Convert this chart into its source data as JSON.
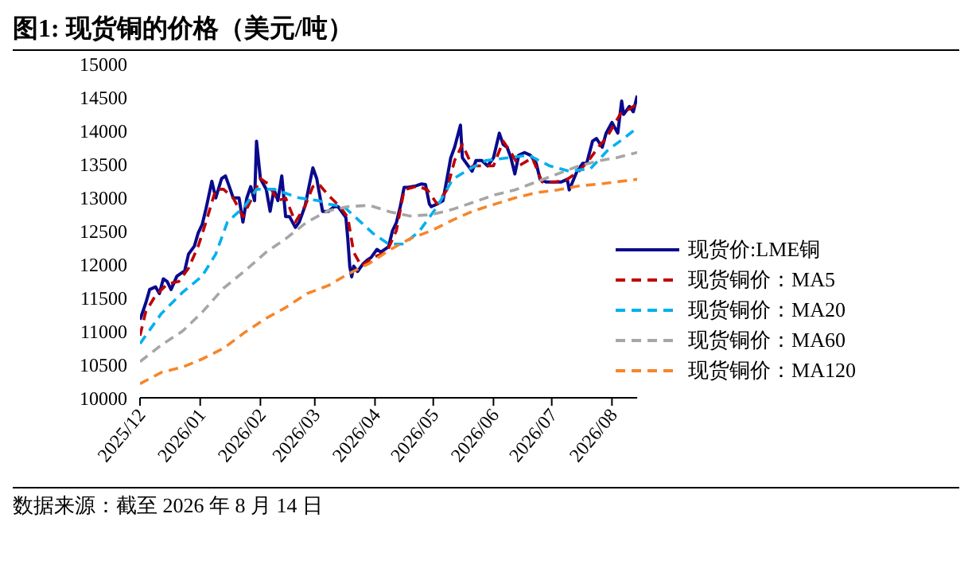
{
  "chart_data": {
    "type": "line",
    "title": "图1:  现货铜的价格（美元/吨）",
    "xlim": [
      "2025-12-01",
      "2026-08-14"
    ],
    "xticks": [
      {
        "value": "2025-12-01",
        "label": "2025/12"
      },
      {
        "value": "2026-01-01",
        "label": "2026/01"
      },
      {
        "value": "2026-02-01",
        "label": "2026/02"
      },
      {
        "value": "2026-03-01",
        "label": "2026/03"
      },
      {
        "value": "2026-04-01",
        "label": "2026/04"
      },
      {
        "value": "2026-05-01",
        "label": "2026/05"
      },
      {
        "value": "2026-06-01",
        "label": "2026/06"
      },
      {
        "value": "2026-07-01",
        "label": "2026/07"
      },
      {
        "value": "2026-08-01",
        "label": "2026/08"
      }
    ],
    "ylim": [
      10000,
      15000
    ],
    "yticks": [
      10000,
      10500,
      11000,
      11500,
      12000,
      12500,
      13000,
      13500,
      14000,
      14500,
      15000
    ],
    "grid": false,
    "legend": "bottom right",
    "marker": "none",
    "annotations": [
      "数据来源：截至 2026 年 8 月 14 日"
    ],
    "series": [
      {
        "name": "现货价:LME铜",
        "color": "#0a0a8c",
        "line_style": "solid",
        "x": [
          "2025-12-01",
          "2025-12-02",
          "2025-12-04",
          "2025-12-06",
          "2025-12-09",
          "2025-12-11",
          "2025-12-13",
          "2025-12-15",
          "2025-12-17",
          "2025-12-20",
          "2025-12-24",
          "2025-12-26",
          "2025-12-29",
          "2025-12-31",
          "2026-01-02",
          "2026-01-04",
          "2026-01-07",
          "2026-01-09",
          "2026-01-12",
          "2026-01-14",
          "2026-01-16",
          "2026-01-18",
          "2026-01-21",
          "2026-01-23",
          "2026-01-25",
          "2026-01-27",
          "2026-01-29",
          "2026-01-30",
          "2026-02-01",
          "2026-02-04",
          "2026-02-06",
          "2026-02-08",
          "2026-02-10",
          "2026-02-12",
          "2026-02-14",
          "2026-02-16",
          "2026-02-19",
          "2026-02-21",
          "2026-02-24",
          "2026-02-26",
          "2026-02-28",
          "2026-03-02",
          "2026-03-05",
          "2026-03-08",
          "2026-03-11",
          "2026-03-13",
          "2026-03-15",
          "2026-03-17",
          "2026-03-18",
          "2026-03-19",
          "2026-03-20",
          "2026-03-21",
          "2026-03-23",
          "2026-03-26",
          "2026-03-28",
          "2026-03-30",
          "2026-04-02",
          "2026-04-04",
          "2026-04-08",
          "2026-04-10",
          "2026-04-12",
          "2026-04-14",
          "2026-04-16",
          "2026-04-18",
          "2026-04-22",
          "2026-04-25",
          "2026-04-27",
          "2026-04-29",
          "2026-04-30",
          "2026-05-03",
          "2026-05-06",
          "2026-05-08",
          "2026-05-10",
          "2026-05-12",
          "2026-05-15",
          "2026-05-16",
          "2026-05-18",
          "2026-05-21",
          "2026-05-23",
          "2026-05-26",
          "2026-05-29",
          "2026-06-01",
          "2026-06-04",
          "2026-06-06",
          "2026-06-08",
          "2026-06-10",
          "2026-06-12",
          "2026-06-14",
          "2026-06-17",
          "2026-06-20",
          "2026-06-23",
          "2026-06-25",
          "2026-06-28",
          "2026-07-02",
          "2026-07-06",
          "2026-07-09",
          "2026-07-10",
          "2026-07-14",
          "2026-07-17",
          "2026-07-19",
          "2026-07-22",
          "2026-07-24",
          "2026-07-27",
          "2026-07-29",
          "2026-08-01",
          "2026-08-04",
          "2026-08-06",
          "2026-08-07",
          "2026-08-10",
          "2026-08-12",
          "2026-08-14"
        ],
        "values": [
          11170,
          11250,
          11420,
          11620,
          11660,
          11560,
          11780,
          11740,
          11620,
          11820,
          11900,
          12150,
          12270,
          12470,
          12590,
          12830,
          13240,
          12990,
          13280,
          13320,
          13160,
          12990,
          12990,
          12630,
          12990,
          13160,
          12950,
          13840,
          13280,
          13120,
          12790,
          13120,
          12950,
          13320,
          12710,
          12710,
          12550,
          12630,
          12870,
          13160,
          13440,
          13280,
          12790,
          12790,
          12860,
          12860,
          12780,
          12700,
          12380,
          11970,
          11810,
          11970,
          11890,
          12010,
          12060,
          12100,
          12220,
          12180,
          12260,
          12500,
          12620,
          12860,
          13150,
          13150,
          13170,
          13200,
          13190,
          12900,
          12860,
          12900,
          12950,
          13270,
          13590,
          13750,
          14080,
          13590,
          13510,
          13390,
          13550,
          13550,
          13470,
          13590,
          13960,
          13790,
          13750,
          13590,
          13350,
          13630,
          13670,
          13630,
          13510,
          13270,
          13230,
          13230,
          13230,
          13270,
          13110,
          13390,
          13510,
          13510,
          13840,
          13880,
          13750,
          13960,
          14120,
          13960,
          14440,
          14240,
          14360,
          14280,
          14520
        ]
      },
      {
        "name": "现货铜价：MA5",
        "color": "#c00000",
        "line_style": "dashed",
        "x": [
          "2025-12-01",
          "2025-12-04",
          "2025-12-09",
          "2025-12-15",
          "2025-12-21",
          "2025-12-26",
          "2025-12-31",
          "2026-01-04",
          "2026-01-09",
          "2026-01-13",
          "2026-01-18",
          "2026-01-23",
          "2026-01-27",
          "2026-02-01",
          "2026-02-05",
          "2026-02-10",
          "2026-02-14",
          "2026-02-19",
          "2026-02-24",
          "2026-02-28",
          "2026-03-03",
          "2026-03-08",
          "2026-03-14",
          "2026-03-18",
          "2026-03-21",
          "2026-03-25",
          "2026-03-31",
          "2026-04-07",
          "2026-04-12",
          "2026-04-16",
          "2026-04-23",
          "2026-04-28",
          "2026-05-03",
          "2026-05-08",
          "2026-05-12",
          "2026-05-16",
          "2026-05-21",
          "2026-05-26",
          "2026-06-01",
          "2026-06-06",
          "2026-06-10",
          "2026-06-14",
          "2026-06-21",
          "2026-06-26",
          "2026-07-03",
          "2026-07-09",
          "2026-07-15",
          "2026-07-20",
          "2026-07-26",
          "2026-07-29",
          "2026-08-02",
          "2026-08-06",
          "2026-08-10",
          "2026-08-14"
        ],
        "values": [
          10930,
          11290,
          11530,
          11700,
          11740,
          11940,
          12270,
          12630,
          13120,
          13120,
          12990,
          12710,
          12950,
          13280,
          13200,
          12950,
          12990,
          12630,
          12870,
          13160,
          13200,
          13030,
          12860,
          12700,
          12180,
          11970,
          12100,
          12180,
          12500,
          13110,
          13170,
          13110,
          12900,
          13110,
          13550,
          13790,
          13470,
          13470,
          13470,
          13840,
          13670,
          13470,
          13590,
          13230,
          13230,
          13270,
          13390,
          13550,
          13790,
          13880,
          14080,
          14280,
          14320,
          14400
        ]
      },
      {
        "name": "现货铜价：MA20",
        "color": "#00b0f0",
        "line_style": "dashed",
        "x": [
          "2025-12-01",
          "2025-12-12",
          "2025-12-23",
          "2026-01-02",
          "2026-01-09",
          "2026-01-15",
          "2026-01-24",
          "2026-01-30",
          "2026-02-08",
          "2026-02-21",
          "2026-03-03",
          "2026-03-08",
          "2026-03-16",
          "2026-03-25",
          "2026-03-31",
          "2026-04-08",
          "2026-04-16",
          "2026-04-24",
          "2026-05-03",
          "2026-05-11",
          "2026-05-20",
          "2026-05-28",
          "2026-06-08",
          "2026-06-19",
          "2026-06-30",
          "2026-07-10",
          "2026-07-21",
          "2026-07-30",
          "2026-08-07",
          "2026-08-14"
        ],
        "values": [
          10810,
          11260,
          11580,
          11820,
          12150,
          12630,
          12870,
          13120,
          13120,
          12990,
          12950,
          12900,
          12860,
          12620,
          12460,
          12300,
          12300,
          12500,
          12860,
          13270,
          13430,
          13550,
          13590,
          13630,
          13470,
          13390,
          13430,
          13710,
          13880,
          14040
        ]
      },
      {
        "name": "现货铜价：MA60",
        "color": "#a6a6a6",
        "line_style": "dashed",
        "x": [
          "2025-12-01",
          "2025-12-12",
          "2025-12-23",
          "2026-01-02",
          "2026-01-13",
          "2026-01-24",
          "2026-02-04",
          "2026-02-14",
          "2026-02-25",
          "2026-03-08",
          "2026-03-18",
          "2026-03-29",
          "2026-04-09",
          "2026-04-19",
          "2026-04-30",
          "2026-05-11",
          "2026-05-22",
          "2026-06-02",
          "2026-06-12",
          "2026-06-23",
          "2026-07-04",
          "2026-07-15",
          "2026-07-26",
          "2026-08-03",
          "2026-08-14"
        ],
        "values": [
          10540,
          10790,
          11000,
          11280,
          11640,
          11900,
          12180,
          12380,
          12630,
          12800,
          12860,
          12880,
          12780,
          12720,
          12740,
          12820,
          12930,
          13040,
          13110,
          13230,
          13350,
          13470,
          13550,
          13590,
          13670
        ]
      },
      {
        "name": "现货铜价：MA120",
        "color": "#f5862a",
        "line_style": "dashed",
        "x": [
          "2025-12-01",
          "2025-12-12",
          "2025-12-23",
          "2026-01-02",
          "2026-01-13",
          "2026-01-24",
          "2026-02-04",
          "2026-02-14",
          "2026-02-25",
          "2026-03-08",
          "2026-03-18",
          "2026-03-29",
          "2026-04-09",
          "2026-04-19",
          "2026-04-30",
          "2026-05-11",
          "2026-05-22",
          "2026-06-02",
          "2026-06-12",
          "2026-06-23",
          "2026-07-04",
          "2026-07-15",
          "2026-07-26",
          "2026-08-03",
          "2026-08-14"
        ],
        "values": [
          10210,
          10380,
          10460,
          10580,
          10740,
          10980,
          11190,
          11350,
          11560,
          11680,
          11850,
          12010,
          12220,
          12380,
          12500,
          12660,
          12800,
          12900,
          12990,
          13070,
          13110,
          13170,
          13200,
          13230,
          13270
        ]
      }
    ]
  }
}
